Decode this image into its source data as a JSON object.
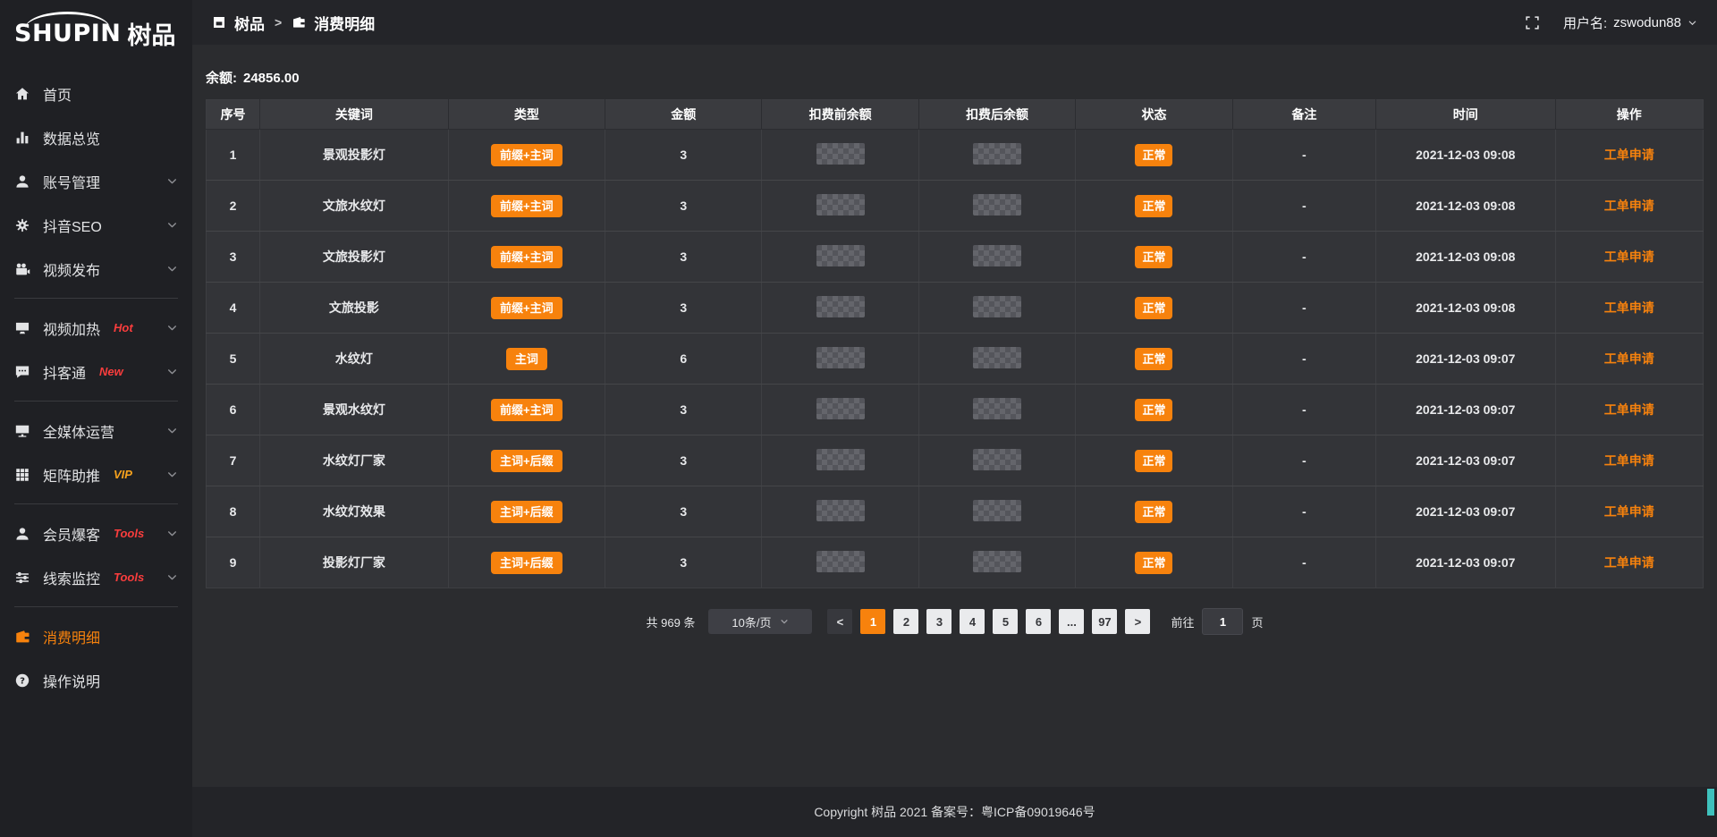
{
  "logo": {
    "brand": "SHUPIN",
    "brand_cn": "树品"
  },
  "sidebar": {
    "items": [
      {
        "type": "item",
        "icon": "home-icon",
        "label": "首页"
      },
      {
        "type": "item",
        "icon": "bar-chart-icon",
        "label": "数据总览"
      },
      {
        "type": "item",
        "icon": "user-icon",
        "label": "账号管理",
        "chevron": true
      },
      {
        "type": "item",
        "icon": "gear-icon",
        "label": "抖音SEO",
        "chevron": true
      },
      {
        "type": "item",
        "icon": "video-camera-icon",
        "label": "视频发布",
        "chevron": true
      },
      {
        "type": "divider"
      },
      {
        "type": "item",
        "icon": "tv-icon",
        "label": "视频加热",
        "tag": "Hot",
        "tag_style": "red",
        "chevron": true
      },
      {
        "type": "item",
        "icon": "chat-icon",
        "label": "抖客通",
        "tag": "New",
        "tag_style": "red",
        "chevron": true
      },
      {
        "type": "divider"
      },
      {
        "type": "item",
        "icon": "monitor-icon",
        "label": "全媒体运营",
        "chevron": true
      },
      {
        "type": "item",
        "icon": "grid-icon",
        "label": "矩阵助推",
        "tag": "VIP",
        "tag_style": "orange",
        "chevron": true
      },
      {
        "type": "divider"
      },
      {
        "type": "item",
        "icon": "member-icon",
        "label": "会员爆客",
        "tag": "Tools",
        "tag_style": "red",
        "chevron": true
      },
      {
        "type": "item",
        "icon": "sliders-icon",
        "label": "线索监控",
        "tag": "Tools",
        "tag_style": "red",
        "chevron": true
      },
      {
        "type": "divider"
      },
      {
        "type": "item",
        "icon": "wallet-icon",
        "label": "消费明细",
        "active": true
      },
      {
        "type": "item",
        "icon": "question-icon",
        "label": "操作说明"
      }
    ]
  },
  "topbar": {
    "breadcrumb_home": "树品",
    "breadcrumb_separator": ">",
    "breadcrumb_current": "消费明细",
    "username_label": "用户名:",
    "username": "zswodun88"
  },
  "balance": {
    "label": "余额:",
    "value": "24856.00"
  },
  "table": {
    "columns": [
      "序号",
      "关键词",
      "类型",
      "金额",
      "扣费前余额",
      "扣费后余额",
      "状态",
      "备注",
      "时间",
      "操作"
    ],
    "redacted_columns": [
      "扣费前余额",
      "扣费后余额"
    ],
    "rows": [
      {
        "index": "1",
        "keyword": "景观投影灯",
        "type": "前缀+主词",
        "amount": "3",
        "status": "正常",
        "remark": "-",
        "time": "2021-12-03 09:08",
        "action": "工单申请"
      },
      {
        "index": "2",
        "keyword": "文旅水纹灯",
        "type": "前缀+主词",
        "amount": "3",
        "status": "正常",
        "remark": "-",
        "time": "2021-12-03 09:08",
        "action": "工单申请"
      },
      {
        "index": "3",
        "keyword": "文旅投影灯",
        "type": "前缀+主词",
        "amount": "3",
        "status": "正常",
        "remark": "-",
        "time": "2021-12-03 09:08",
        "action": "工单申请"
      },
      {
        "index": "4",
        "keyword": "文旅投影",
        "type": "前缀+主词",
        "amount": "3",
        "status": "正常",
        "remark": "-",
        "time": "2021-12-03 09:08",
        "action": "工单申请"
      },
      {
        "index": "5",
        "keyword": "水纹灯",
        "type": "主词",
        "amount": "6",
        "status": "正常",
        "remark": "-",
        "time": "2021-12-03 09:07",
        "action": "工单申请"
      },
      {
        "index": "6",
        "keyword": "景观水纹灯",
        "type": "前缀+主词",
        "amount": "3",
        "status": "正常",
        "remark": "-",
        "time": "2021-12-03 09:07",
        "action": "工单申请"
      },
      {
        "index": "7",
        "keyword": "水纹灯厂家",
        "type": "主词+后缀",
        "amount": "3",
        "status": "正常",
        "remark": "-",
        "time": "2021-12-03 09:07",
        "action": "工单申请"
      },
      {
        "index": "8",
        "keyword": "水纹灯效果",
        "type": "主词+后缀",
        "amount": "3",
        "status": "正常",
        "remark": "-",
        "time": "2021-12-03 09:07",
        "action": "工单申请"
      },
      {
        "index": "9",
        "keyword": "投影灯厂家",
        "type": "主词+后缀",
        "amount": "3",
        "status": "正常",
        "remark": "-",
        "time": "2021-12-03 09:07",
        "action": "工单申请"
      }
    ]
  },
  "pagination": {
    "total_label": "共 969 条",
    "page_size": "10条/页",
    "prev_label": "<",
    "next_label": ">",
    "pages": [
      "1",
      "2",
      "3",
      "4",
      "5",
      "6",
      "...",
      "97"
    ],
    "active_page": "1",
    "goto_label": "前往",
    "goto_value": "1",
    "goto_suffix": "页"
  },
  "footer": {
    "copyright": "Copyright 树品 2021 备案号：粤ICP备09019646号"
  },
  "colors": {
    "accent_orange": "#f7820d",
    "tag_red": "#fa3d3d",
    "tag_vip_orange": "#f7a21d",
    "sidebar_bg": "#1f2024",
    "content_bg": "#2b2c2f",
    "row_bg": "#333438",
    "header_row_bg": "#3a3b3f",
    "footer_bg": "#232428",
    "scroll_thumb": "#3fc1bd"
  }
}
